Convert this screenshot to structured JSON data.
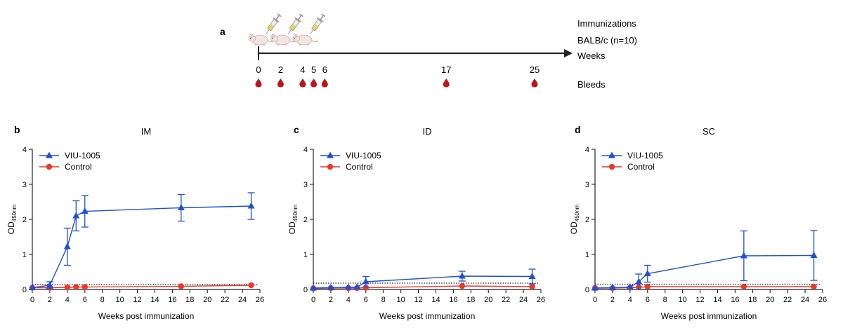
{
  "schedule": {
    "panel_label": "a",
    "immunizations_label": "Immunizations",
    "strain_label": "BALB/c (n=10)",
    "weeks_label": "Weeks",
    "bleeds_label": "Bleeds",
    "timepoints": [
      "0",
      "2",
      "4",
      "5",
      "6",
      "17",
      "25"
    ],
    "immunization_weeks": [
      0,
      2,
      4
    ],
    "bleed_weeks": [
      0,
      2,
      4,
      5,
      6,
      17,
      25
    ]
  },
  "colors": {
    "vaccine": "#1f4fd6",
    "control": "#e8392a",
    "axis": "#222222",
    "cutoff": "#222222",
    "blood": "#c0141c"
  },
  "chart_data": [
    {
      "type": "line",
      "panel_label": "b",
      "title": "IM",
      "xlabel": "Weeks post immunization",
      "ylabel": "OD",
      "ylabel_sub": "450nm",
      "xlim": [
        0,
        26
      ],
      "ylim": [
        0,
        4
      ],
      "xticks": [
        0,
        2,
        4,
        6,
        8,
        10,
        12,
        14,
        16,
        18,
        20,
        22,
        24,
        26
      ],
      "yticks": [
        0,
        1,
        2,
        3,
        4
      ],
      "cutoff": 0.14,
      "legend_position": "top-left",
      "series": [
        {
          "name": "VIU-1005",
          "marker": "triangle",
          "color": "#1f4fd6",
          "x": [
            0,
            2,
            4,
            5,
            6,
            17,
            25
          ],
          "y": [
            0.05,
            0.12,
            1.22,
            2.1,
            2.23,
            2.33,
            2.38
          ],
          "err": [
            0.02,
            0.1,
            0.53,
            0.43,
            0.45,
            0.38,
            0.38
          ]
        },
        {
          "name": "Control",
          "marker": "circle",
          "color": "#e8392a",
          "x": [
            0,
            2,
            4,
            5,
            6,
            17,
            25
          ],
          "y": [
            0.05,
            0.05,
            0.06,
            0.07,
            0.07,
            0.09,
            0.12
          ],
          "err": [
            0,
            0,
            0,
            0,
            0,
            0,
            0
          ]
        }
      ]
    },
    {
      "type": "line",
      "panel_label": "c",
      "title": "ID",
      "xlabel": "Weeks post immunization",
      "ylabel": "OD",
      "ylabel_sub": "450nm",
      "xlim": [
        0,
        26
      ],
      "ylim": [
        0,
        4
      ],
      "xticks": [
        0,
        2,
        4,
        6,
        8,
        10,
        12,
        14,
        16,
        18,
        20,
        22,
        24,
        26
      ],
      "yticks": [
        0,
        1,
        2,
        3,
        4
      ],
      "cutoff": 0.18,
      "legend_position": "top-left",
      "series": [
        {
          "name": "VIU-1005",
          "marker": "triangle",
          "color": "#1f4fd6",
          "x": [
            0,
            2,
            4,
            5,
            6,
            17,
            25
          ],
          "y": [
            0.04,
            0.05,
            0.06,
            0.07,
            0.22,
            0.38,
            0.37
          ],
          "err": [
            0.01,
            0.02,
            0.03,
            0.05,
            0.15,
            0.14,
            0.21
          ]
        },
        {
          "name": "Control",
          "marker": "circle",
          "color": "#e8392a",
          "x": [
            0,
            2,
            4,
            5,
            6,
            17,
            25
          ],
          "y": [
            0.03,
            0.04,
            0.04,
            0.04,
            0.05,
            0.1,
            0.08
          ],
          "err": [
            0,
            0,
            0,
            0,
            0,
            0,
            0
          ]
        }
      ]
    },
    {
      "type": "line",
      "panel_label": "d",
      "title": "SC",
      "xlabel": "Weeks post immunization",
      "ylabel": "OD",
      "ylabel_sub": "450nm",
      "xlim": [
        0,
        26
      ],
      "ylim": [
        0,
        4
      ],
      "xticks": [
        0,
        2,
        4,
        6,
        8,
        10,
        12,
        14,
        16,
        18,
        20,
        22,
        24,
        26
      ],
      "yticks": [
        0,
        1,
        2,
        3,
        4
      ],
      "cutoff": 0.15,
      "legend_position": "top-left",
      "series": [
        {
          "name": "VIU-1005",
          "marker": "triangle",
          "color": "#1f4fd6",
          "x": [
            0,
            2,
            4,
            5,
            6,
            17,
            25
          ],
          "y": [
            0.04,
            0.05,
            0.07,
            0.22,
            0.45,
            0.96,
            0.97
          ],
          "err": [
            0.01,
            0.02,
            0.04,
            0.22,
            0.24,
            0.71,
            0.71
          ]
        },
        {
          "name": "Control",
          "marker": "circle",
          "color": "#e8392a",
          "x": [
            0,
            2,
            4,
            5,
            6,
            17,
            25
          ],
          "y": [
            0.04,
            0.04,
            0.05,
            0.06,
            0.08,
            0.08,
            0.08
          ],
          "err": [
            0,
            0,
            0,
            0,
            0,
            0,
            0
          ]
        }
      ]
    }
  ]
}
